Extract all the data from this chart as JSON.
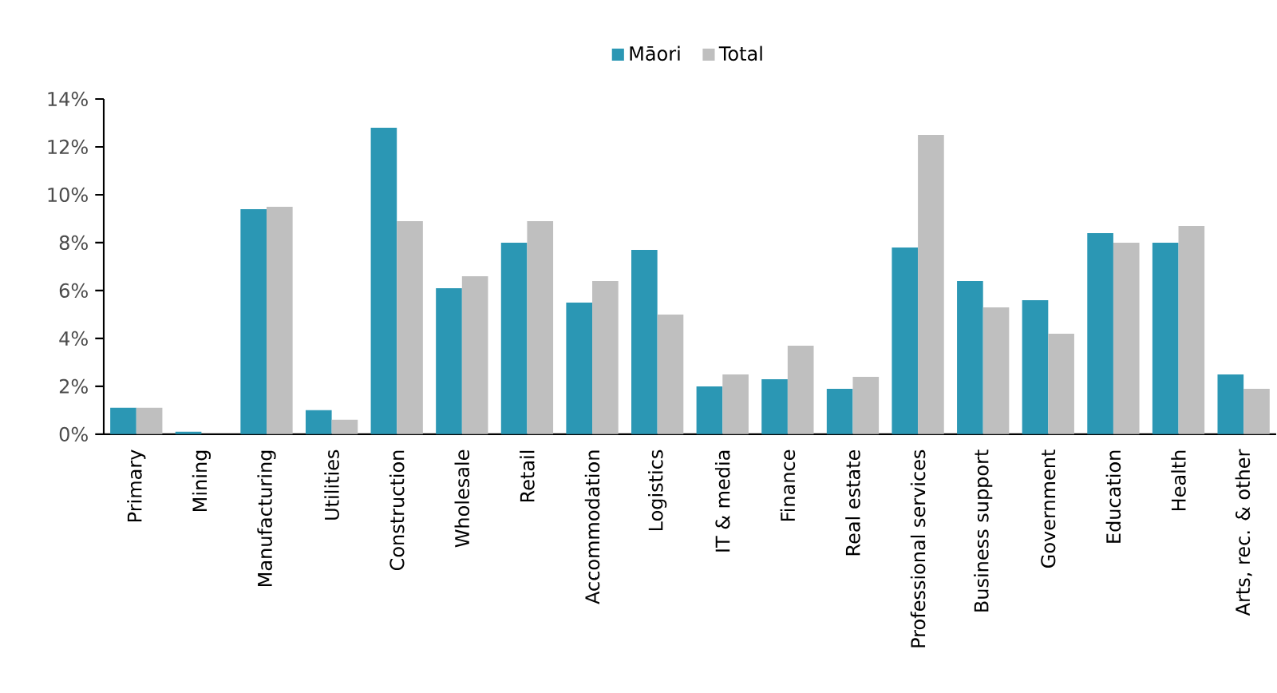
{
  "chart_data": {
    "type": "bar",
    "legend": "top",
    "grid": false,
    "categories": [
      "Primary",
      "Mining",
      "Manufacturing",
      "Utilities",
      "Construction",
      "Wholesale",
      "Retail",
      "Accommodation",
      "Logistics",
      "IT & media",
      "Finance",
      "Real estate",
      "Professional services",
      "Business support",
      "Government",
      "Education",
      "Health",
      "Arts, rec. & other"
    ],
    "series": [
      {
        "name": "Māori",
        "color": "#2b97b4",
        "values": [
          1.1,
          0.1,
          9.4,
          1.0,
          12.8,
          6.1,
          8.0,
          5.5,
          7.7,
          2.0,
          2.3,
          1.9,
          7.8,
          6.4,
          5.6,
          8.4,
          8.0,
          2.5
        ]
      },
      {
        "name": "Total",
        "color": "#bfbfbf",
        "values": [
          1.1,
          null,
          9.5,
          0.6,
          8.9,
          6.6,
          8.9,
          6.4,
          5.0,
          2.5,
          3.7,
          2.4,
          12.5,
          5.3,
          4.2,
          8.0,
          8.7,
          1.9
        ]
      }
    ],
    "ylim": [
      0,
      14
    ],
    "yticks": [
      {
        "value": 0,
        "label": "0%"
      },
      {
        "value": 2,
        "label": "2%"
      },
      {
        "value": 4,
        "label": "4%"
      },
      {
        "value": 6,
        "label": "6%"
      },
      {
        "value": 8,
        "label": "8%"
      },
      {
        "value": 10,
        "label": "10%"
      },
      {
        "value": 12,
        "label": "12%"
      },
      {
        "value": 14,
        "label": "14%"
      }
    ]
  }
}
